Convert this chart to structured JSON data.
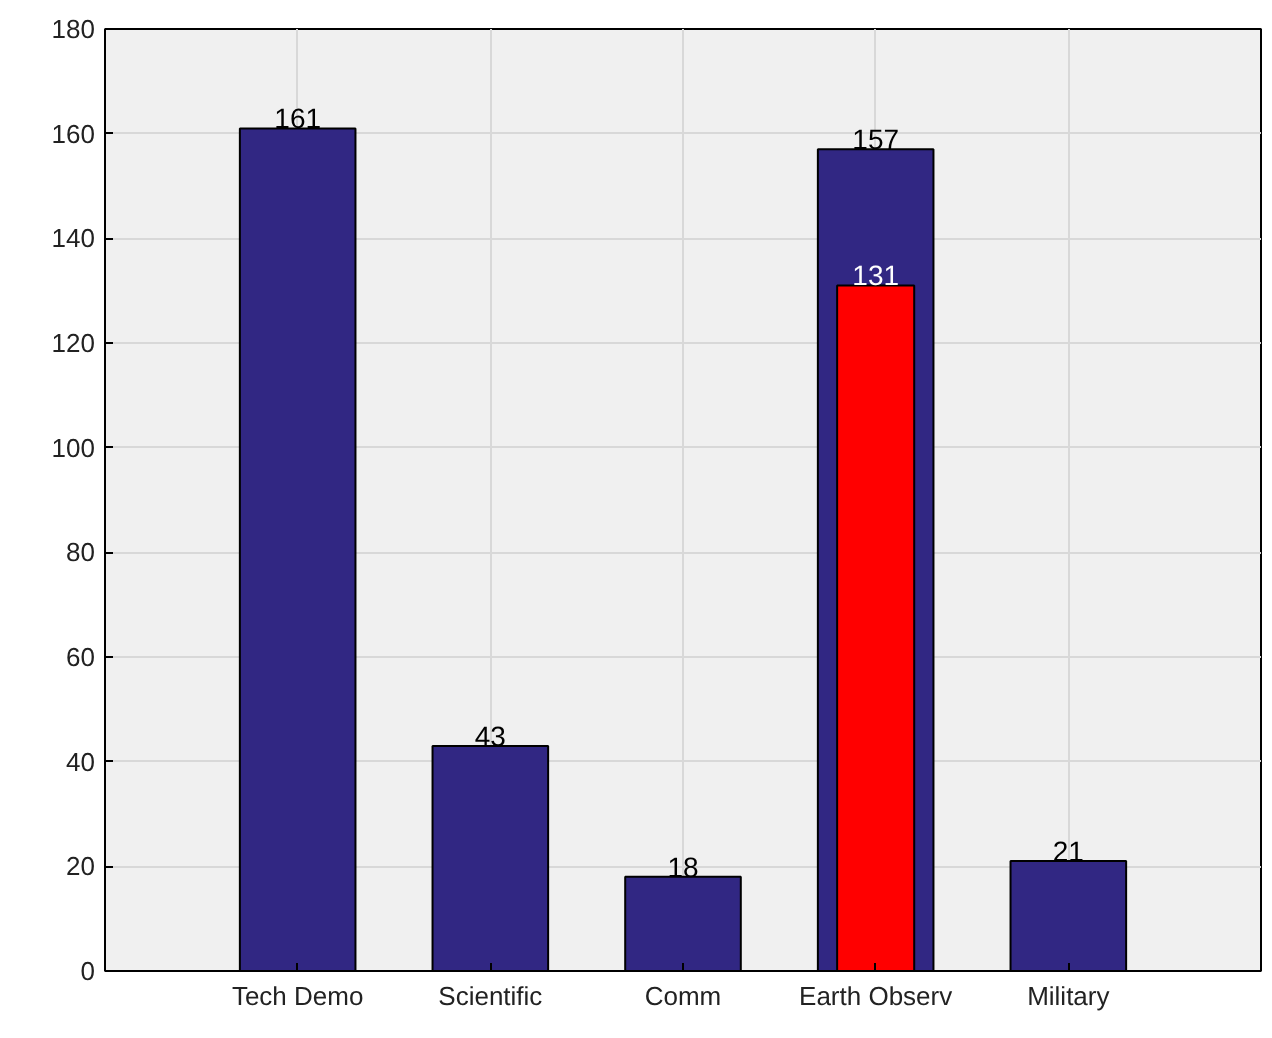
{
  "chart_data": {
    "type": "bar",
    "categories": [
      "Tech Demo",
      "Scientific",
      "Comm",
      "Earth Observ",
      "Military"
    ],
    "series": [
      {
        "color": "#312783",
        "values": [
          161,
          43,
          18,
          157,
          21
        ]
      },
      {
        "color": "#ff0000",
        "values": [
          null,
          null,
          null,
          131,
          null
        ]
      }
    ],
    "ylim": [
      0,
      180
    ],
    "yticks": [
      0,
      20,
      40,
      60,
      80,
      100,
      120,
      140,
      160,
      180
    ],
    "grid": true,
    "data_labels": true
  }
}
